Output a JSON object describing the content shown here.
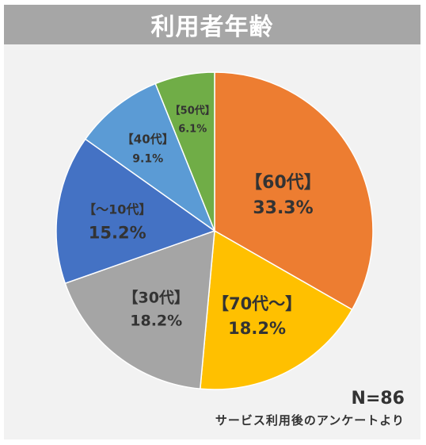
{
  "header": {
    "title": "利用者年齢"
  },
  "chart_data": {
    "type": "pie",
    "title": "利用者年齢",
    "slices": [
      {
        "label": "【60代】",
        "value": 33.3,
        "display": "33.3%",
        "color": "#ed7d31",
        "label_color": "#333333"
      },
      {
        "label": "【70代～】",
        "value": 18.2,
        "display": "18.2%",
        "color": "#ffc000",
        "label_color": "#333333"
      },
      {
        "label": "【30代】",
        "value": 18.2,
        "display": "18.2%",
        "color": "#a5a5a5",
        "label_color": "#333333"
      },
      {
        "label": "【～10代】",
        "value": 15.2,
        "display": "15.2%",
        "color": "#4472c4",
        "label_color": "#333333"
      },
      {
        "label": "【40代】",
        "value": 9.1,
        "display": "9.1%",
        "color": "#5b9bd5",
        "label_color": "#333333"
      },
      {
        "label": "【50代】",
        "value": 6.1,
        "display": "6.1%",
        "color": "#70ad47",
        "label_color": "#333333"
      }
    ],
    "start_angle_deg": 0,
    "direction": "clockwise"
  },
  "footer": {
    "sample_size": "N=86",
    "source": "サービス利用後のアンケートより"
  }
}
